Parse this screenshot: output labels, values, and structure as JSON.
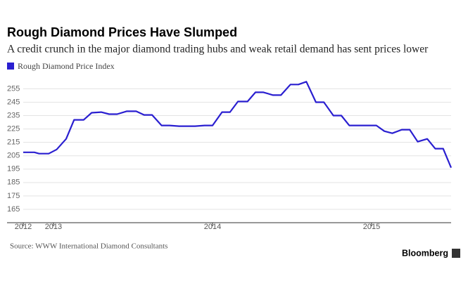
{
  "chart_data": {
    "type": "line",
    "title": "Rough Diamond Prices Have Slumped",
    "subtitle": "A credit crunch in the major diamond trading hubs and weak retail demand has sent prices lower",
    "source": "Source: WWW International Diamond Consultants",
    "logo": "Bloomberg",
    "x": [
      2012.81,
      2012.88,
      2012.91,
      2012.97,
      2013.02,
      2013.08,
      2013.13,
      2013.19,
      2013.24,
      2013.3,
      2013.35,
      2013.4,
      2013.46,
      2013.52,
      2013.57,
      2013.62,
      2013.68,
      2013.73,
      2013.79,
      2013.84,
      2013.89,
      2013.95,
      2014.0,
      2014.06,
      2014.11,
      2014.16,
      2014.22,
      2014.27,
      2014.32,
      2014.38,
      2014.43,
      2014.49,
      2014.54,
      2014.59,
      2014.65,
      2014.7,
      2014.76,
      2014.81,
      2014.86,
      2014.92,
      2014.97,
      2015.03,
      2015.08,
      2015.13,
      2015.19,
      2015.24,
      2015.29,
      2015.35,
      2015.4,
      2015.45,
      2015.5
    ],
    "series": [
      {
        "name": "Rough Diamond Price Index",
        "color": "#2a1fd0",
        "values": [
          207.6,
          207.6,
          206.6,
          206.6,
          209.7,
          217.6,
          231.8,
          231.8,
          237.1,
          237.6,
          236.1,
          236.1,
          238.2,
          238.2,
          235.5,
          235.5,
          227.6,
          227.6,
          227.1,
          227.1,
          227.1,
          227.6,
          227.6,
          237.6,
          237.6,
          245.5,
          245.5,
          252.4,
          252.4,
          250.3,
          250.3,
          258.2,
          258.2,
          260.3,
          245.0,
          245.0,
          235.0,
          235.0,
          227.6,
          227.6,
          227.6,
          227.6,
          223.4,
          221.8,
          224.5,
          224.5,
          215.5,
          217.6,
          210.3,
          210.3,
          196.1
        ]
      }
    ],
    "xlim": [
      2012.81,
      2015.5
    ],
    "xticks": [
      {
        "value": 2012.81,
        "label": "2012"
      },
      2013,
      2014,
      2015
    ],
    "ylim": [
      155,
      261
    ],
    "yticks": [
      165,
      175,
      185,
      195,
      205,
      215,
      225,
      235,
      245,
      255
    ],
    "grid": true
  }
}
